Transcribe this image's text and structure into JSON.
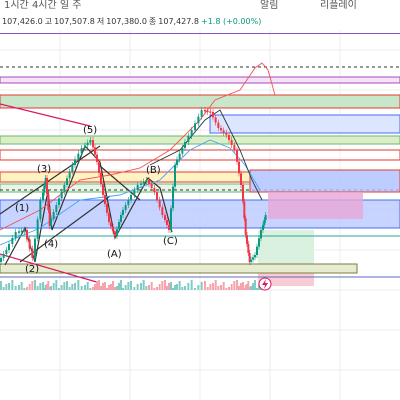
{
  "toolbar": {
    "items": [
      "1시간 4시간 일 주",
      "알림",
      "리플레이"
    ]
  },
  "ohlc": {
    "open": "107,426.0",
    "high_label": "고",
    "high": "107,507.8",
    "low_label": "저",
    "low": "107,380.0",
    "close_label": "종",
    "close": "107,427.8",
    "change": "+1.8 (+0.00%)"
  },
  "wave_labels": {
    "w1": "(1)",
    "w2": "(2)",
    "w3": "(3)",
    "w4": "(4)",
    "w5": "(5)",
    "wA": "(A)",
    "wB": "(B)",
    "wC": "(C)"
  },
  "colors": {
    "up": "#089981",
    "down": "#f23645",
    "zone_blue": "#4a6cf7",
    "zone_green": "#4caf50",
    "zone_red": "#e53935",
    "line_red": "#d81b60"
  },
  "replay_icon": "lightning-icon"
}
